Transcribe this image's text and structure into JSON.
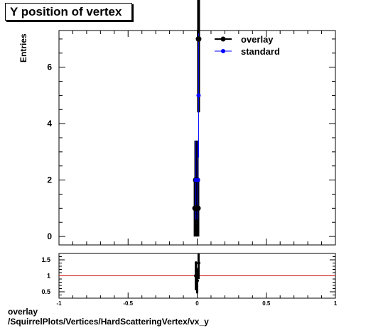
{
  "title": "Y position of vertex",
  "footer": {
    "line1": "overlay",
    "line2": "/SquirrelPlots/Vertices/HardScatteringVertex/vx_y"
  },
  "colors": {
    "overlay": "#000000",
    "standard": "#0000ff",
    "ratio_line": "#cc0000"
  },
  "chart_data": [
    {
      "type": "scatter",
      "ylabel": "Entries",
      "xlim": [
        -1,
        1
      ],
      "ylim": [
        -0.3,
        7.3
      ],
      "y_ticks": [
        "0",
        "2",
        "4",
        "6"
      ],
      "legend_position": "top-right",
      "legend": [
        "overlay",
        "standard"
      ],
      "series": [
        {
          "name": "overlay",
          "points": [
            {
              "x": -0.015,
              "y": 1,
              "err": 1
            },
            {
              "x": -0.01,
              "y": 2,
              "err": 1.4
            },
            {
              "x": -0.005,
              "y": 1,
              "err": 1
            },
            {
              "x": 0.0,
              "y": 2,
              "err": 1.4
            },
            {
              "x": 0.005,
              "y": 1,
              "err": 1
            },
            {
              "x": 0.01,
              "y": 7,
              "err": 2.6
            }
          ]
        },
        {
          "name": "standard",
          "points": [
            {
              "x": -0.01,
              "y": 2,
              "err": 1.4
            },
            {
              "x": 0.005,
              "y": 2,
              "err": 1.4
            },
            {
              "x": 0.01,
              "y": 5,
              "err": 2.2
            }
          ]
        }
      ]
    },
    {
      "type": "scatter",
      "name": "ratio",
      "xlim": [
        -1,
        1
      ],
      "ylim": [
        0.3,
        1.7
      ],
      "x_ticks": [
        "-1",
        "-0.5",
        "0",
        "0.5",
        "1"
      ],
      "y_ticks": [
        "0.5",
        "1",
        "1.5"
      ],
      "reference_line": 1,
      "points": [
        {
          "x": -0.01,
          "y": 1.0,
          "err": 0.45
        },
        {
          "x": 0.0,
          "y": 0.85,
          "err": 0.4
        },
        {
          "x": 0.01,
          "y": 1.4,
          "err": 0.5
        }
      ]
    }
  ]
}
